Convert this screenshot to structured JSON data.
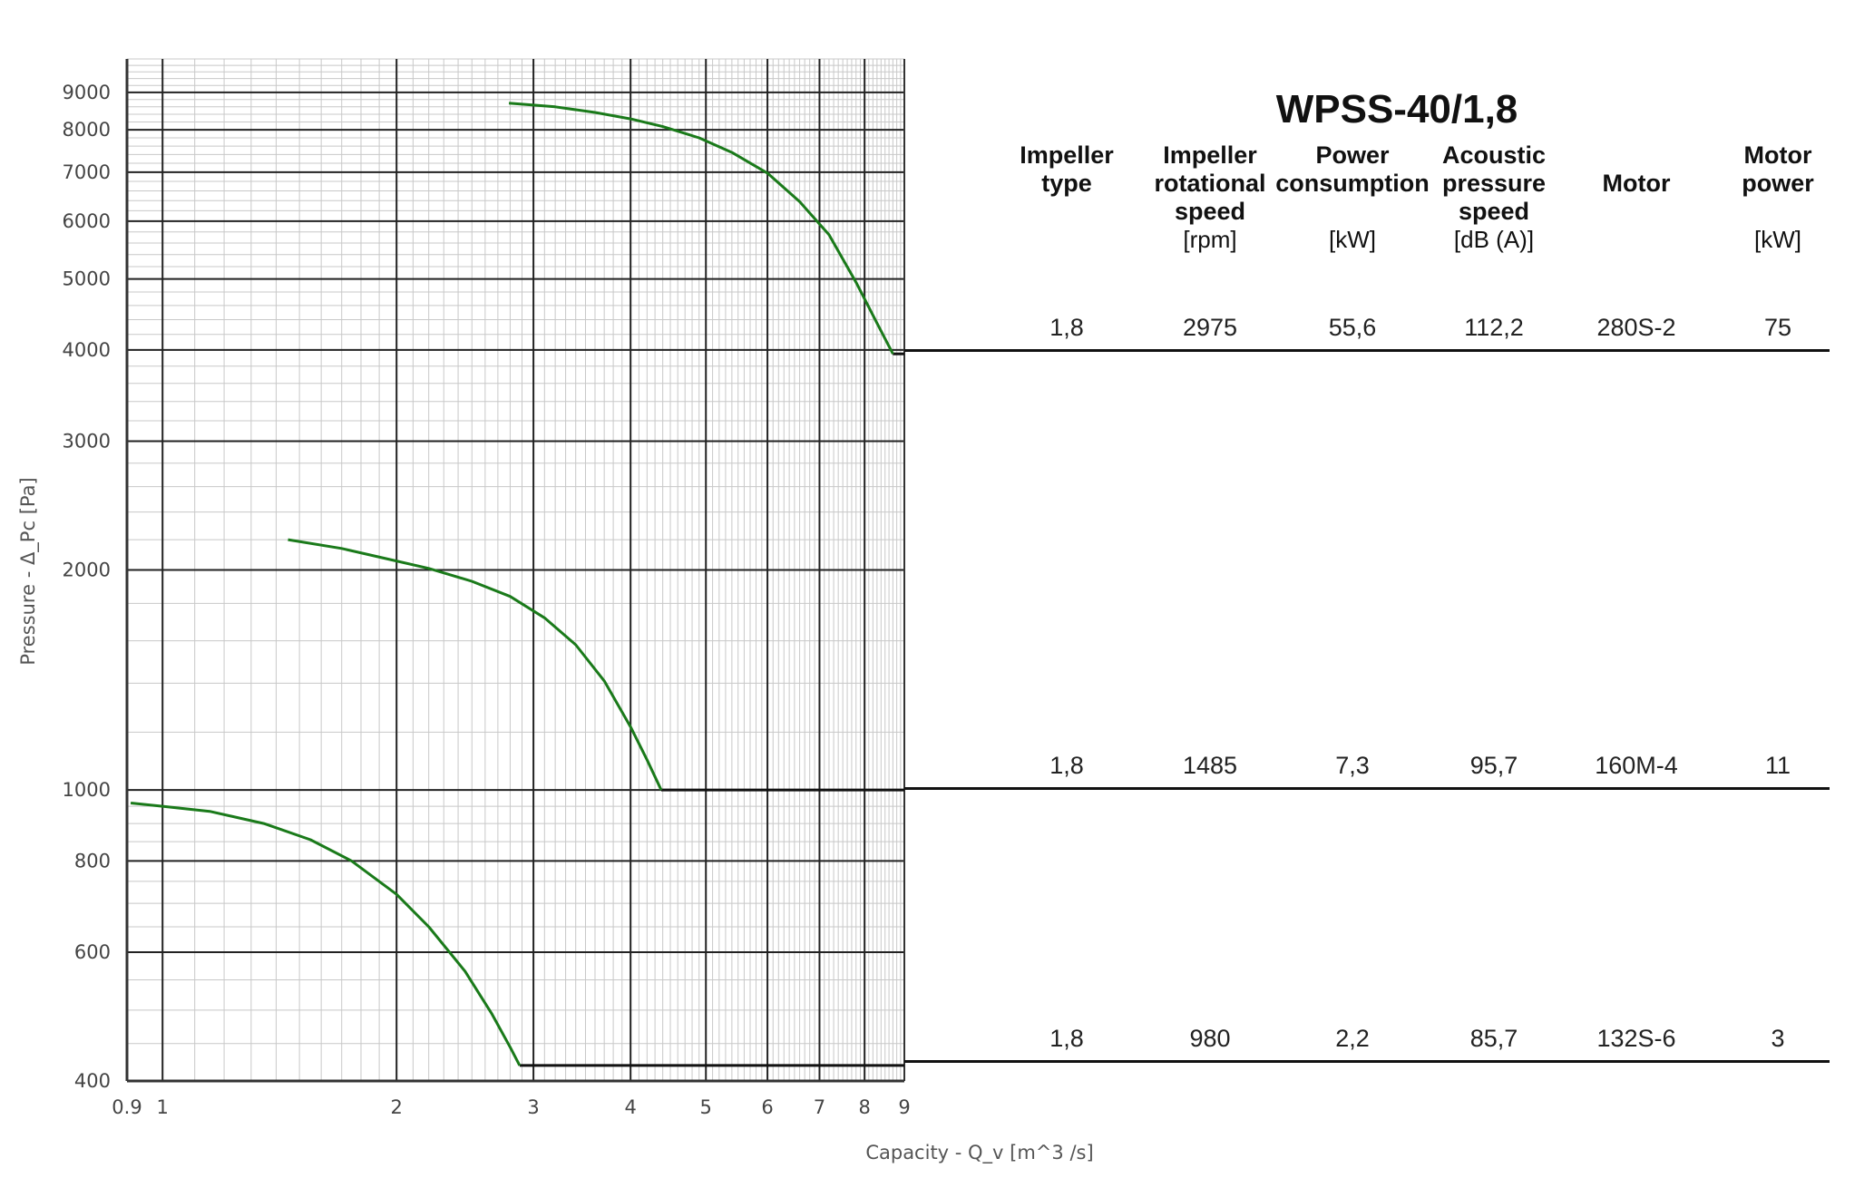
{
  "chart_data": {
    "type": "line",
    "title": "WPSS-40/1,8",
    "xlabel": "Capacity - Q_v [m^3 /s]",
    "ylabel": "Pressure - Δ_Pc [Pa]",
    "xscale": "log",
    "yscale": "log",
    "xlim": [
      0.9,
      9
    ],
    "ylim": [
      400,
      10000
    ],
    "x_ticks": [
      "0.9",
      "1",
      "2",
      "3",
      "4",
      "5",
      "6",
      "7",
      "8",
      "9"
    ],
    "y_ticks": [
      "400",
      "600",
      "800",
      "1000",
      "2000",
      "3000",
      "4000",
      "5000",
      "6000",
      "7000",
      "8000",
      "9000"
    ],
    "grid": true,
    "line_color": "#1a7a1a",
    "series": [
      {
        "x": [
          2.79,
          3.2,
          3.6,
          4.0,
          4.4,
          4.9,
          5.4,
          6.0,
          6.6,
          7.2,
          7.8,
          8.3,
          8.7
        ],
        "y": [
          8700,
          8600,
          8450,
          8280,
          8080,
          7800,
          7450,
          6980,
          6380,
          5750,
          4950,
          4350,
          3950
        ]
      },
      {
        "x": [
          1.45,
          1.7,
          1.95,
          2.2,
          2.5,
          2.8,
          3.1,
          3.4,
          3.7,
          4.0,
          4.2,
          4.38
        ],
        "y": [
          2200,
          2140,
          2070,
          2010,
          1930,
          1840,
          1720,
          1580,
          1410,
          1220,
          1100,
          1000
        ]
      },
      {
        "x": [
          0.91,
          1.0,
          1.15,
          1.35,
          1.55,
          1.75,
          2.0,
          2.2,
          2.45,
          2.65,
          2.8,
          2.88
        ],
        "y": [
          960,
          950,
          935,
          900,
          855,
          800,
          720,
          650,
          565,
          495,
          445,
          420
        ]
      }
    ]
  },
  "table": {
    "headers": [
      {
        "line1": "Impeller",
        "line2": "type",
        "line3": "",
        "unit": ""
      },
      {
        "line1": "Impeller",
        "line2": "rotational",
        "line3": "speed",
        "unit": "[rpm]"
      },
      {
        "line1": "Power",
        "line2": "consumption",
        "line3": "",
        "unit": "[kW]"
      },
      {
        "line1": "Acoustic",
        "line2": "pressure",
        "line3": "speed",
        "unit": "[dB (A)]"
      },
      {
        "line1": "Motor",
        "line2": "",
        "line3": "",
        "unit": ""
      },
      {
        "line1": "Motor",
        "line2": "power",
        "line3": "",
        "unit": "[kW]"
      }
    ],
    "rows": [
      [
        "1,8",
        "2975",
        "55,6",
        "112,2",
        "280S-2",
        "75"
      ],
      [
        "1,8",
        "1485",
        "7,3",
        "95,7",
        "160M-4",
        "11"
      ],
      [
        "1,8",
        "980",
        "2,2",
        "85,7",
        "132S-6",
        "3"
      ]
    ]
  }
}
